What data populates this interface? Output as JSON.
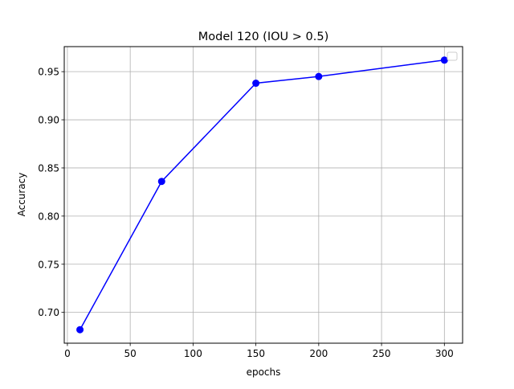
{
  "chart_data": {
    "type": "line",
    "title": "Model 120   (IOU > 0.5)",
    "xlabel": "epochs",
    "ylabel": "Accuracy",
    "xlim": [
      -2.5,
      314.5
    ],
    "ylim": [
      0.668,
      0.976
    ],
    "xticks": [
      0,
      50,
      100,
      150,
      200,
      250,
      300
    ],
    "yticks": [
      0.7,
      0.75,
      0.8,
      0.85,
      0.9,
      0.95
    ],
    "xtick_labels": [
      "0",
      "50",
      "100",
      "150",
      "200",
      "250",
      "300"
    ],
    "ytick_labels": [
      "0.70",
      "0.75",
      "0.80",
      "0.85",
      "0.90",
      "0.95"
    ],
    "grid": true,
    "legend": "upper right (empty)",
    "series": [
      {
        "color": "#0000ff",
        "marker": "circle",
        "x": [
          10,
          75,
          150,
          200,
          300
        ],
        "y": [
          0.682,
          0.836,
          0.938,
          0.945,
          0.962
        ]
      }
    ]
  }
}
